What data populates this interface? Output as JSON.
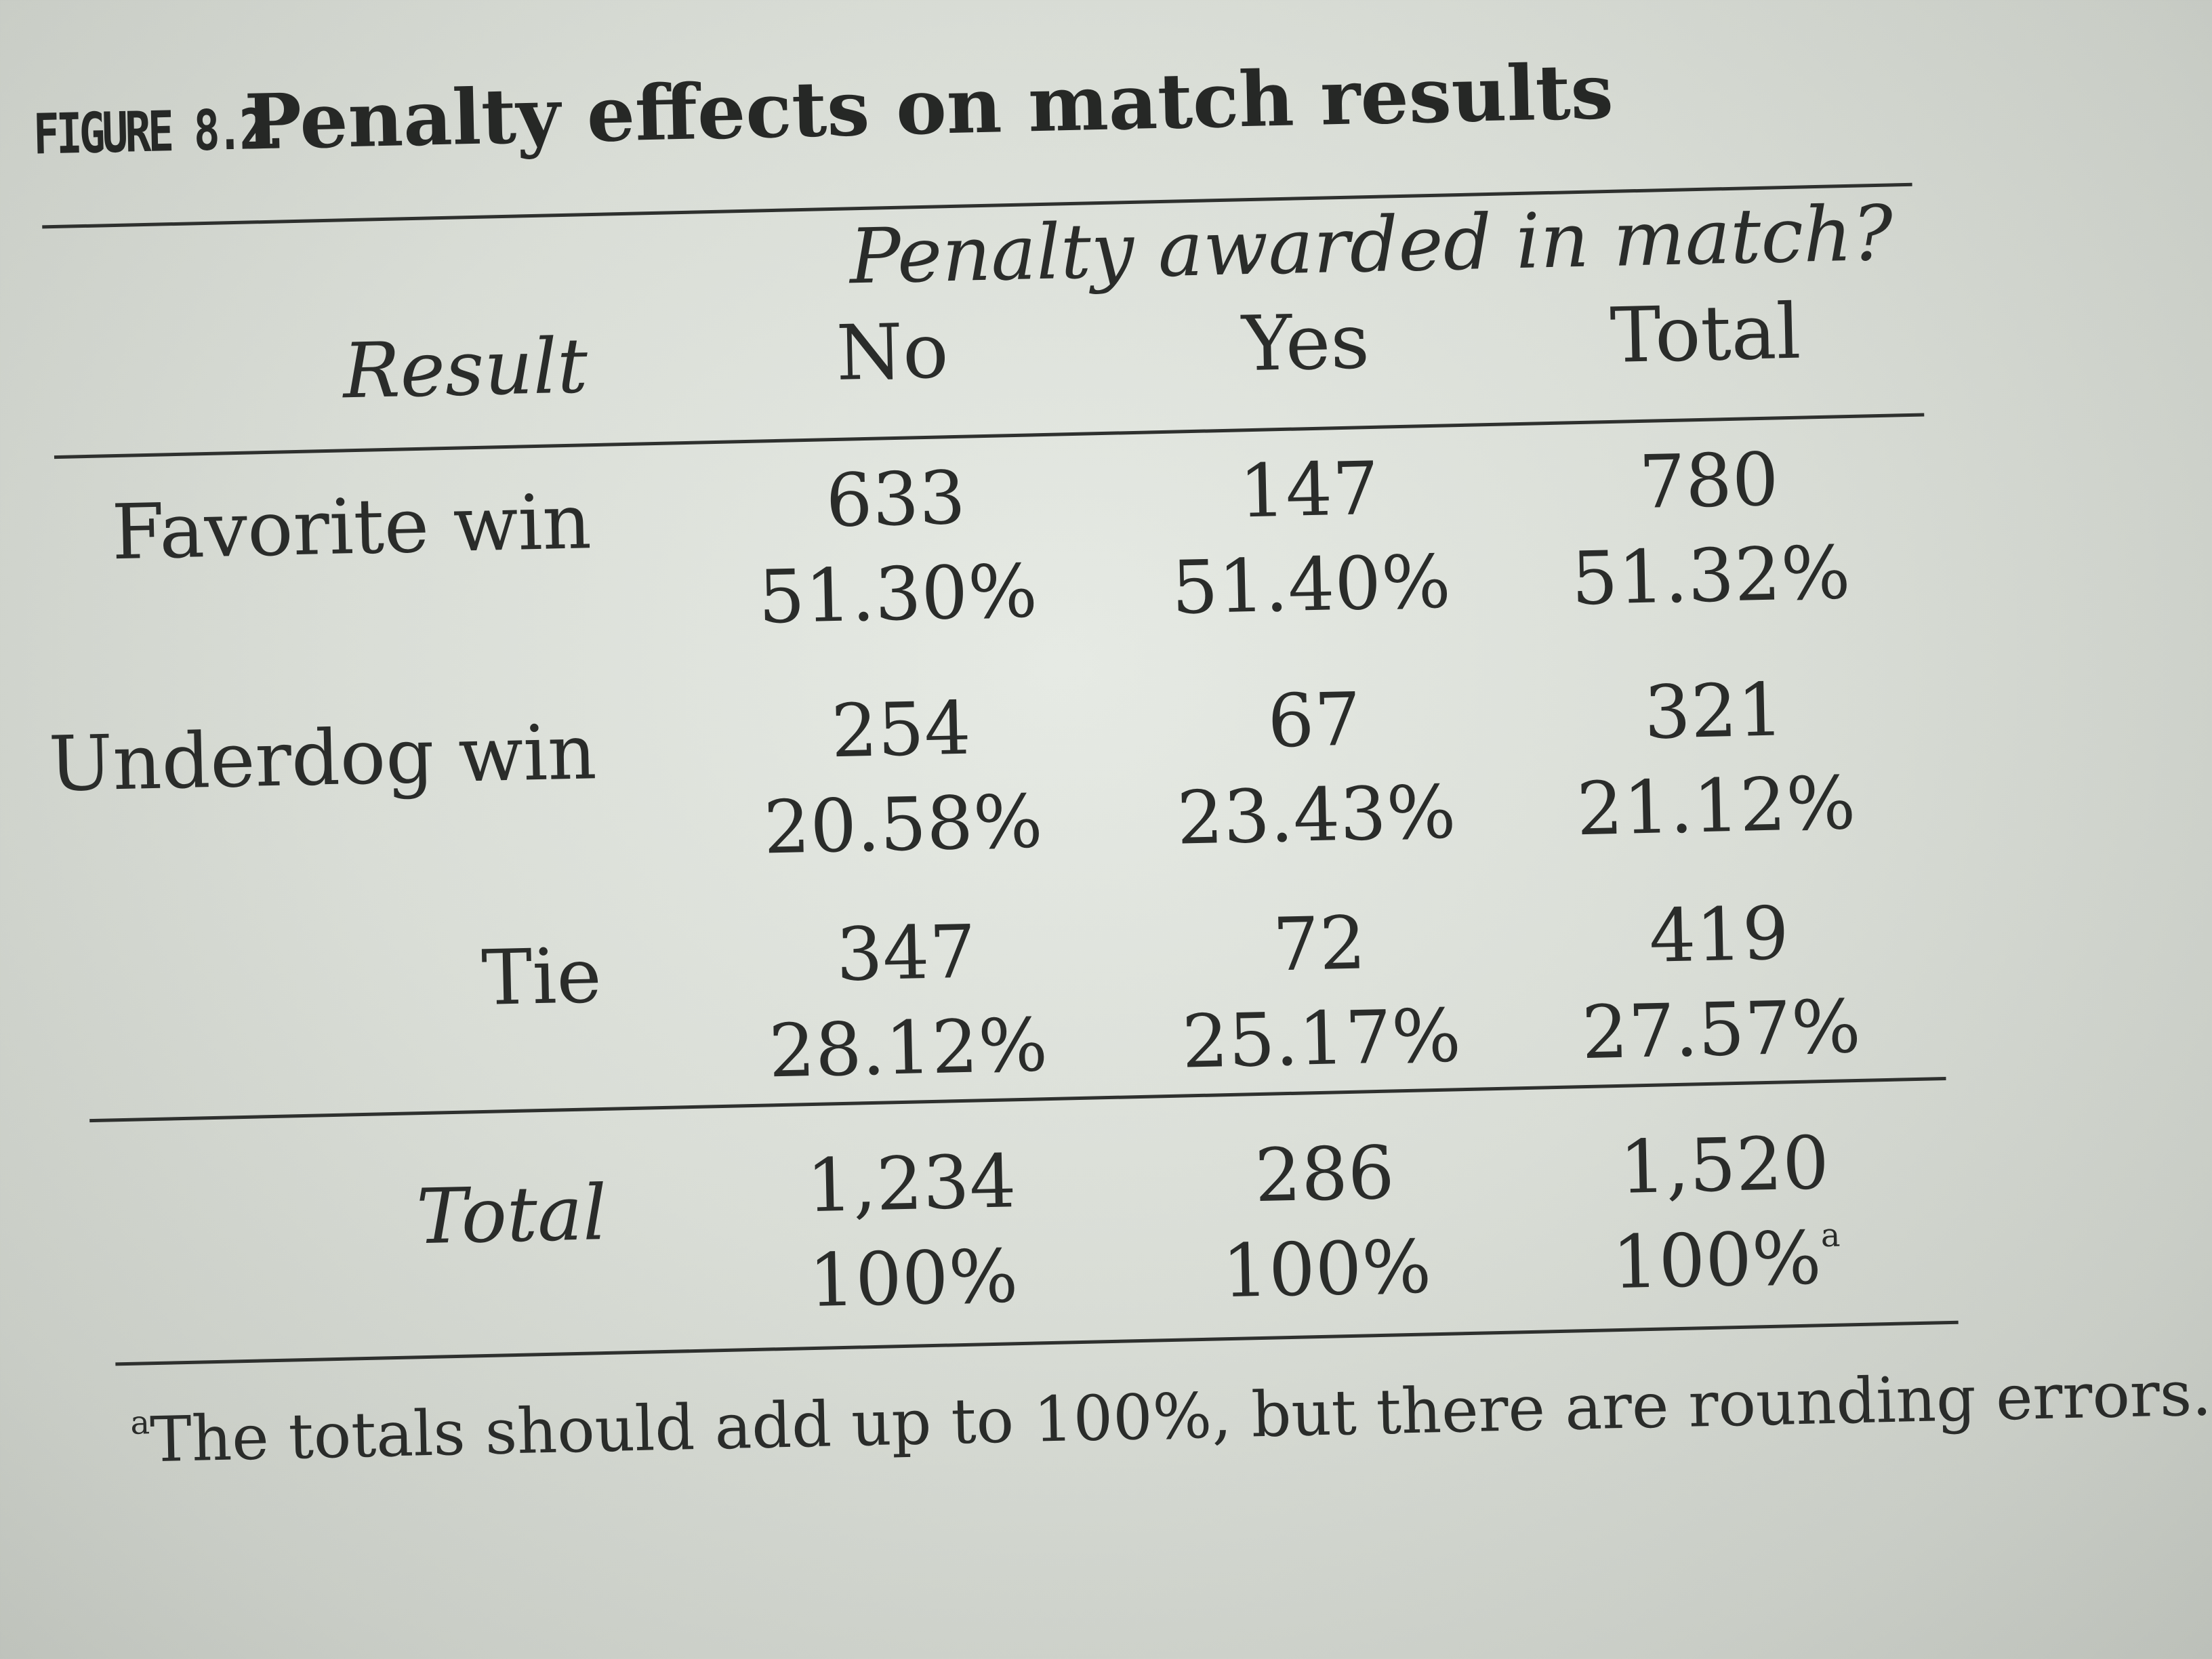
{
  "figure": {
    "label": "FIGURE 8.2.",
    "caption": "Penalty effects on match results"
  },
  "table": {
    "spanner_header": "Penalty awarded in match?",
    "row_header": "Result",
    "columns": [
      "No",
      "Yes",
      "Total"
    ],
    "rows": [
      {
        "label": "Favorite win",
        "cells": [
          {
            "count": "633",
            "percent": "51.30%"
          },
          {
            "count": "147",
            "percent": "51.40%"
          },
          {
            "count": "780",
            "percent": "51.32%"
          }
        ]
      },
      {
        "label": "Underdog win",
        "cells": [
          {
            "count": "254",
            "percent": "20.58%"
          },
          {
            "count": "67",
            "percent": "23.43%"
          },
          {
            "count": "321",
            "percent": "21.12%"
          }
        ]
      },
      {
        "label": "Tie",
        "cells": [
          {
            "count": "347",
            "percent": "28.12%"
          },
          {
            "count": "72",
            "percent": "25.17%"
          },
          {
            "count": "419",
            "percent": "27.57%"
          }
        ]
      }
    ],
    "total_row": {
      "label": "Total",
      "cells": [
        {
          "count": "1,234",
          "percent": "100%"
        },
        {
          "count": "286",
          "percent": "100%"
        },
        {
          "count": "1,520",
          "percent": "100%",
          "footnote_mark": "a"
        }
      ]
    }
  },
  "footnote": {
    "mark": "a",
    "text": "The totals should add up to 100%, but there are rounding errors."
  }
}
